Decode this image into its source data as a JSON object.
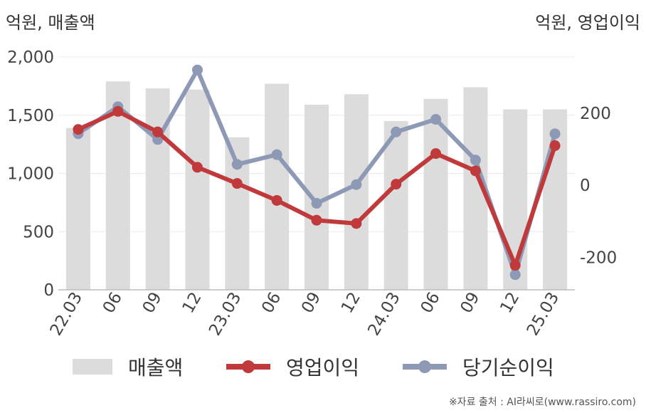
{
  "chart_data": {
    "type": "bar+line",
    "unit_left": "억원, 매출액",
    "unit_right": "억원, 영업이익",
    "categories": [
      "22.03",
      "06",
      "09",
      "12",
      "23.03",
      "06",
      "09",
      "12",
      "24.03",
      "06",
      "09",
      "12",
      "25.03"
    ],
    "series": [
      {
        "name": "매출액",
        "type": "bar",
        "axis": "left",
        "color": "#dcdcdc",
        "values": [
          1390,
          1790,
          1730,
          1720,
          1310,
          1770,
          1590,
          1680,
          1450,
          1640,
          1740,
          1550,
          1550
        ]
      },
      {
        "name": "영업이익",
        "type": "line",
        "axis": "right",
        "color": "#c0393b",
        "values": [
          155,
          205,
          148,
          50,
          5,
          -42,
          -97,
          -106,
          3,
          88,
          40,
          -222,
          110
        ]
      },
      {
        "name": "당기순이익",
        "type": "line",
        "axis": "right",
        "color": "#8e9ab5",
        "values": [
          143,
          218,
          127,
          320,
          58,
          85,
          -50,
          2,
          148,
          183,
          70,
          -248,
          143
        ]
      }
    ],
    "y_left": {
      "range": [
        0,
        2000
      ],
      "ticks": [
        0,
        500,
        1000,
        1500,
        2000
      ],
      "tick_labels": [
        "0",
        "500",
        "1,000",
        "1,500",
        "2,000"
      ]
    },
    "y_right": {
      "range": [
        -290,
        356
      ],
      "ticks": [
        -200,
        0,
        200
      ],
      "tick_labels": [
        "-200",
        "0",
        "200"
      ]
    },
    "grid": true,
    "legend_position": "bottom"
  },
  "source": "※자료 출처 : AI라씨로(www.rassiro.com)"
}
